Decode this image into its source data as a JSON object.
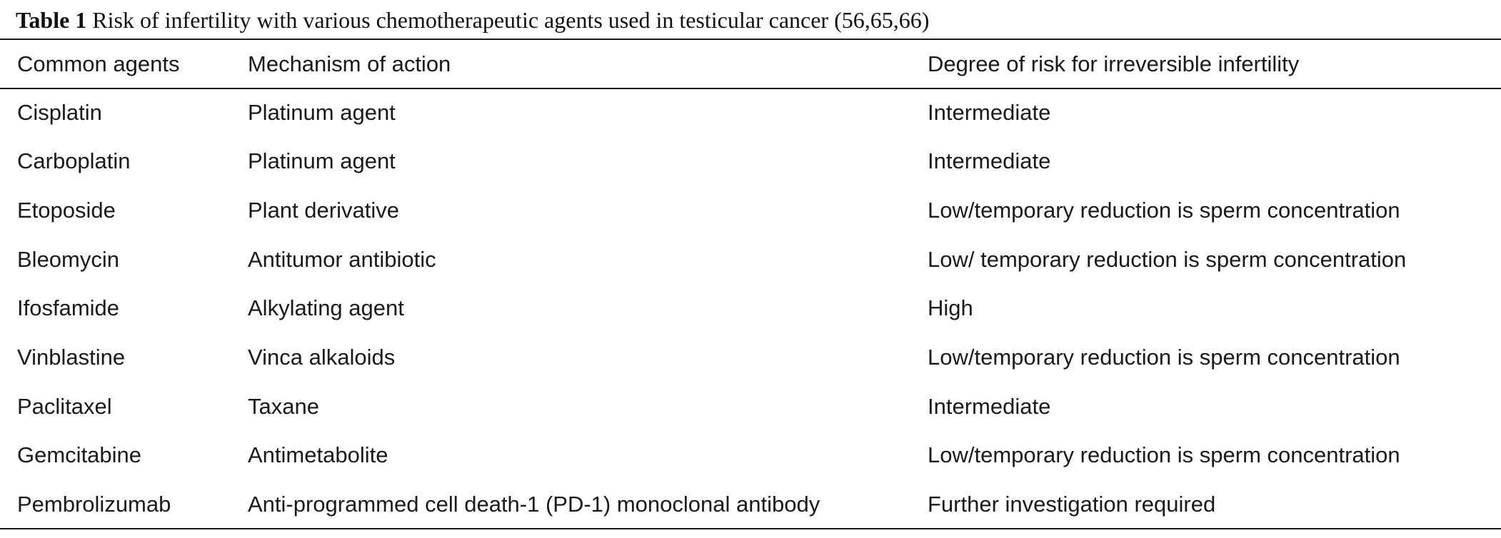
{
  "caption": {
    "label": "Table 1",
    "text": "Risk of infertility with various chemotherapeutic agents used in testicular cancer (56,65,66)"
  },
  "table": {
    "headers": [
      "Common agents",
      "Mechanism of action",
      "Degree of risk for irreversible infertility"
    ],
    "rows": [
      [
        "Cisplatin",
        "Platinum agent",
        "Intermediate"
      ],
      [
        "Carboplatin",
        "Platinum agent",
        "Intermediate"
      ],
      [
        "Etoposide",
        "Plant derivative",
        "Low/temporary reduction is sperm concentration"
      ],
      [
        "Bleomycin",
        "Antitumor antibiotic",
        "Low/ temporary reduction is sperm concentration"
      ],
      [
        "Ifosfamide",
        "Alkylating agent",
        "High"
      ],
      [
        "Vinblastine",
        "Vinca alkaloids",
        "Low/temporary reduction is sperm concentration"
      ],
      [
        "Paclitaxel",
        "Taxane",
        "Intermediate"
      ],
      [
        "Gemcitabine",
        "Antimetabolite",
        "Low/temporary reduction is sperm concentration"
      ],
      [
        "Pembrolizumab",
        "Anti-programmed cell death-1 (PD-1) monoclonal antibody",
        "Further investigation required"
      ]
    ]
  }
}
